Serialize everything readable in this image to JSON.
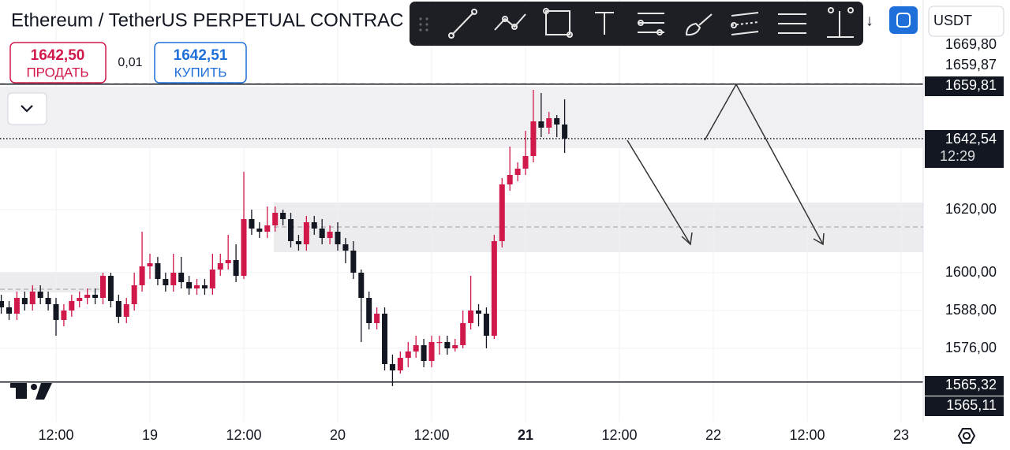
{
  "header": {
    "title": "Ethereum / TetherUS PERPETUAL CONTRAC",
    "sell": {
      "price": "1642,50",
      "label": "ПРОДАТЬ"
    },
    "spread": "0,01",
    "buy": {
      "price": "1642,51",
      "label": "КУПИТЬ"
    },
    "currency": "USDT",
    "arrow": "↓"
  },
  "chart_data": {
    "type": "candlestick",
    "x": [
      -19,
      -18,
      -17,
      -16,
      -15,
      -14,
      -13,
      -12,
      -11,
      -10,
      -9,
      -8,
      -7,
      -6,
      -5,
      -4,
      -3,
      -2,
      -1,
      0,
      1,
      2,
      3,
      4,
      5,
      6,
      7,
      8,
      9,
      10,
      11,
      12,
      13,
      14,
      15,
      16,
      17,
      18,
      19,
      20,
      21,
      22,
      23,
      24,
      25,
      26,
      27,
      28,
      29,
      30,
      31,
      32,
      33,
      34,
      35,
      36,
      37,
      38,
      39,
      40,
      41,
      42,
      43,
      44,
      45,
      46,
      47,
      48,
      49,
      50,
      51,
      52,
      53
    ],
    "open": [
      1591,
      1589,
      1587,
      1592,
      1590,
      1594,
      1592,
      1590,
      1585,
      1588,
      1591,
      1592,
      1593,
      1592,
      1599,
      1591,
      1586,
      1590,
      1596,
      1602,
      1603,
      1598,
      1596,
      1600,
      1597,
      1595,
      1596,
      1595,
      1601,
      1603,
      1604,
      1599,
      1617,
      1614,
      1613,
      1615,
      1619,
      1617,
      1610,
      1609,
      1616,
      1614,
      1611,
      1613,
      1609,
      1607,
      1600,
      1592,
      1584,
      1587,
      1571,
      1569,
      1573,
      1575,
      1577,
      1572,
      1578,
      1578,
      1576,
      1577,
      1584,
      1588,
      1587,
      1580,
      1610,
      1628,
      1631,
      1633,
      1637,
      1648,
      1646,
      1649,
      1647
    ],
    "high": [
      1593,
      1591,
      1594,
      1594,
      1596,
      1596,
      1594,
      1592,
      1590,
      1593,
      1594,
      1595,
      1595,
      1600,
      1600,
      1593,
      1592,
      1600,
      1613,
      1606,
      1605,
      1600,
      1606,
      1605,
      1599,
      1598,
      1598,
      1606,
      1606,
      1612,
      1609,
      1632,
      1620,
      1616,
      1621,
      1621,
      1620,
      1619,
      1612,
      1618,
      1618,
      1617,
      1615,
      1616,
      1611,
      1610,
      1601,
      1594,
      1589,
      1589,
      1574,
      1575,
      1578,
      1580,
      1579,
      1580,
      1580,
      1580,
      1579,
      1588,
      1599,
      1590,
      1589,
      1612,
      1630,
      1640,
      1635,
      1645,
      1658,
      1657,
      1651,
      1650,
      1655
    ],
    "low": [
      1587,
      1585,
      1585,
      1588,
      1588,
      1590,
      1588,
      1580,
      1583,
      1586,
      1589,
      1590,
      1590,
      1590,
      1589,
      1584,
      1584,
      1588,
      1594,
      1598,
      1596,
      1594,
      1594,
      1595,
      1593,
      1593,
      1593,
      1593,
      1599,
      1601,
      1597,
      1598,
      1612,
      1611,
      1611,
      1613,
      1615,
      1608,
      1607,
      1607,
      1612,
      1609,
      1609,
      1607,
      1603,
      1598,
      1578,
      1582,
      1582,
      1569,
      1564,
      1568,
      1570,
      1573,
      1570,
      1570,
      1574,
      1574,
      1575,
      1576,
      1582,
      1583,
      1576,
      1579,
      1608,
      1626,
      1629,
      1631,
      1635,
      1643,
      1644,
      1643,
      1638
    ],
    "close": [
      1589,
      1587,
      1592,
      1590,
      1594,
      1592,
      1590,
      1585,
      1588,
      1591,
      1592,
      1593,
      1592,
      1599,
      1591,
      1586,
      1590,
      1596,
      1602,
      1603,
      1598,
      1596,
      1600,
      1597,
      1595,
      1596,
      1595,
      1601,
      1603,
      1604,
      1599,
      1617,
      1614,
      1613,
      1615,
      1619,
      1617,
      1610,
      1609,
      1616,
      1614,
      1611,
      1613,
      1609,
      1607,
      1600,
      1592,
      1584,
      1587,
      1571,
      1569,
      1573,
      1575,
      1577,
      1572,
      1578,
      1578,
      1576,
      1577,
      1584,
      1588,
      1587,
      1580,
      1610,
      1628,
      1631,
      1633,
      1637,
      1648,
      1646,
      1649,
      1647,
      1642.54
    ],
    "up_color": "#d1184a",
    "down_color": "#131722",
    "xlim": [
      -19.16,
      98.82
    ],
    "ylim": [
      1552.75,
      1686.5
    ],
    "xticks": [
      {
        "value": -12,
        "label": "12:00"
      },
      {
        "value": 0,
        "label": "19"
      },
      {
        "value": 12,
        "label": "12:00"
      },
      {
        "value": 24,
        "label": "20"
      },
      {
        "value": 36,
        "label": "12:00"
      },
      {
        "value": 48,
        "label": "21"
      },
      {
        "value": 60,
        "label": "12:00"
      },
      {
        "value": 72,
        "label": "22"
      },
      {
        "value": 84,
        "label": "12:00"
      },
      {
        "value": 96,
        "label": "23"
      }
    ],
    "yticks": [
      {
        "value": 1620,
        "label": "1620,00"
      },
      {
        "value": 1600,
        "label": "1600,00"
      },
      {
        "value": 1588,
        "label": "1588,00"
      },
      {
        "value": 1576,
        "label": "1576,00"
      }
    ],
    "grid": true,
    "price_tags": [
      {
        "value": 1669.8,
        "label": "1669,80"
      },
      {
        "value": 1659.87,
        "label": "1659,87"
      },
      {
        "value": 1659.81,
        "label": "1659,81"
      },
      {
        "value": 1642.54,
        "label": "1642,54"
      },
      {
        "value": 1565.32,
        "label": "1565,32"
      },
      {
        "value": 1565.11,
        "label": "1565,11"
      }
    ],
    "countdown": "12:29"
  }
}
